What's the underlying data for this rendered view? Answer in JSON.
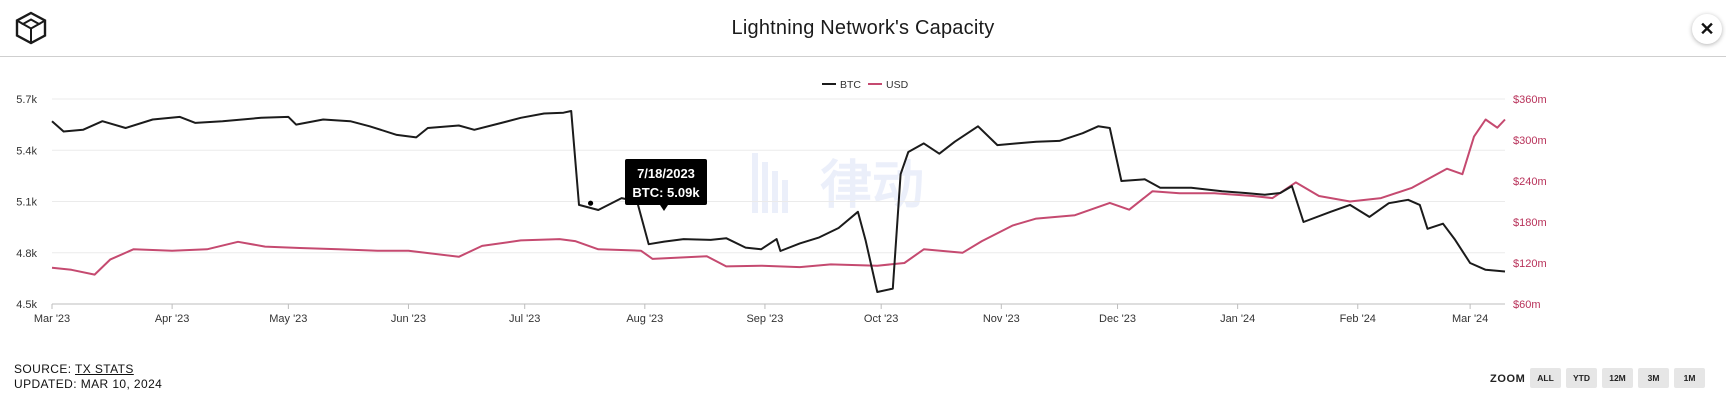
{
  "header": {
    "title": "Lightning Network's Capacity",
    "close_glyph": "✕",
    "logo_icon": "cube-logo-icon"
  },
  "footer": {
    "source_prefix": "SOURCE:",
    "source_link": "TX STATS",
    "updated": "UPDATED: MAR 10, 2024"
  },
  "zoom": {
    "label": "ZOOM",
    "buttons": [
      "ALL",
      "YTD",
      "12M",
      "3M",
      "1M"
    ]
  },
  "tooltip": {
    "date": "7/18/2023",
    "value": "BTC: 5.09k"
  },
  "watermark": "律动",
  "colors": {
    "btc": "#1b1b1b",
    "usd": "#c54a70",
    "axis_right": "#b8325a"
  },
  "chart_data": {
    "type": "line",
    "title": "Lightning Network's Capacity",
    "x_labels": [
      "Mar '23",
      "Apr '23",
      "May '23",
      "Jun '23",
      "Jul '23",
      "Aug '23",
      "Sep '23",
      "Oct '23",
      "Nov '23",
      "Dec '23",
      "Jan '24",
      "Feb '24",
      "Mar '24"
    ],
    "x_range": [
      "2023-03-01",
      "2024-03-10"
    ],
    "y_left": {
      "ticks": [
        "4.5k",
        "4.8k",
        "5.1k",
        "5.4k",
        "5.7k"
      ],
      "min": 4500,
      "max": 5700,
      "unit": "BTC"
    },
    "y_right": {
      "ticks": [
        "$60m",
        "$120m",
        "$180m",
        "$240m",
        "$300m",
        "$360m"
      ],
      "min": 60,
      "max": 360,
      "unit": "USD millions"
    },
    "legend": {
      "position": "top-center",
      "entries": [
        "BTC",
        "USD"
      ]
    },
    "series": [
      {
        "name": "BTC",
        "axis": "left",
        "points": [
          [
            "2023-03-01",
            5570
          ],
          [
            "2023-03-04",
            5510
          ],
          [
            "2023-03-09",
            5520
          ],
          [
            "2023-03-14",
            5570
          ],
          [
            "2023-03-20",
            5530
          ],
          [
            "2023-03-27",
            5580
          ],
          [
            "2023-04-03",
            5595
          ],
          [
            "2023-04-07",
            5560
          ],
          [
            "2023-04-14",
            5570
          ],
          [
            "2023-04-24",
            5590
          ],
          [
            "2023-05-01",
            5595
          ],
          [
            "2023-05-03",
            5550
          ],
          [
            "2023-05-10",
            5580
          ],
          [
            "2023-05-17",
            5570
          ],
          [
            "2023-05-22",
            5540
          ],
          [
            "2023-05-29",
            5490
          ],
          [
            "2023-06-03",
            5475
          ],
          [
            "2023-06-06",
            5530
          ],
          [
            "2023-06-14",
            5545
          ],
          [
            "2023-06-18",
            5520
          ],
          [
            "2023-06-25",
            5560
          ],
          [
            "2023-06-30",
            5590
          ],
          [
            "2023-07-06",
            5615
          ],
          [
            "2023-07-11",
            5620
          ],
          [
            "2023-07-13",
            5630
          ],
          [
            "2023-07-15",
            5080
          ],
          [
            "2023-07-20",
            5050
          ],
          [
            "2023-07-26",
            5120
          ],
          [
            "2023-07-30",
            5100
          ],
          [
            "2023-08-02",
            4850
          ],
          [
            "2023-08-06",
            4865
          ],
          [
            "2023-08-11",
            4880
          ],
          [
            "2023-08-18",
            4875
          ],
          [
            "2023-08-22",
            4885
          ],
          [
            "2023-08-27",
            4830
          ],
          [
            "2023-08-31",
            4820
          ],
          [
            "2023-09-04",
            4880
          ],
          [
            "2023-09-05",
            4810
          ],
          [
            "2023-09-10",
            4855
          ],
          [
            "2023-09-15",
            4890
          ],
          [
            "2023-09-20",
            4945
          ],
          [
            "2023-09-25",
            5040
          ],
          [
            "2023-09-27",
            4870
          ],
          [
            "2023-09-30",
            4570
          ],
          [
            "2023-10-04",
            4590
          ],
          [
            "2023-10-06",
            5260
          ],
          [
            "2023-10-08",
            5390
          ],
          [
            "2023-10-12",
            5440
          ],
          [
            "2023-10-16",
            5380
          ],
          [
            "2023-10-20",
            5450
          ],
          [
            "2023-10-26",
            5540
          ],
          [
            "2023-10-31",
            5430
          ],
          [
            "2023-11-05",
            5440
          ],
          [
            "2023-11-10",
            5450
          ],
          [
            "2023-11-16",
            5455
          ],
          [
            "2023-11-22",
            5500
          ],
          [
            "2023-11-26",
            5540
          ],
          [
            "2023-11-29",
            5530
          ],
          [
            "2023-12-02",
            5220
          ],
          [
            "2023-12-08",
            5230
          ],
          [
            "2023-12-12",
            5180
          ],
          [
            "2023-12-20",
            5180
          ],
          [
            "2023-12-28",
            5160
          ],
          [
            "2024-01-03",
            5150
          ],
          [
            "2024-01-08",
            5140
          ],
          [
            "2024-01-12",
            5150
          ],
          [
            "2024-01-15",
            5190
          ],
          [
            "2024-01-18",
            4980
          ],
          [
            "2024-01-25",
            5040
          ],
          [
            "2024-01-30",
            5080
          ],
          [
            "2024-02-04",
            5010
          ],
          [
            "2024-02-09",
            5090
          ],
          [
            "2024-02-14",
            5110
          ],
          [
            "2024-02-17",
            5080
          ],
          [
            "2024-02-19",
            4940
          ],
          [
            "2024-02-23",
            4970
          ],
          [
            "2024-02-26",
            4880
          ],
          [
            "2024-03-01",
            4740
          ],
          [
            "2024-03-05",
            4700
          ],
          [
            "2024-03-10",
            4690
          ]
        ]
      },
      {
        "name": "USD",
        "axis": "right",
        "points": [
          [
            "2023-03-01",
            113
          ],
          [
            "2023-03-06",
            110
          ],
          [
            "2023-03-12",
            103
          ],
          [
            "2023-03-16",
            125
          ],
          [
            "2023-03-22",
            140
          ],
          [
            "2023-04-01",
            138
          ],
          [
            "2023-04-10",
            140
          ],
          [
            "2023-04-18",
            151
          ],
          [
            "2023-04-25",
            144
          ],
          [
            "2023-05-04",
            142
          ],
          [
            "2023-05-14",
            140
          ],
          [
            "2023-05-24",
            138
          ],
          [
            "2023-06-01",
            138
          ],
          [
            "2023-06-14",
            129
          ],
          [
            "2023-06-20",
            145
          ],
          [
            "2023-06-30",
            153
          ],
          [
            "2023-07-10",
            155
          ],
          [
            "2023-07-14",
            152
          ],
          [
            "2023-07-20",
            140
          ],
          [
            "2023-07-31",
            138
          ],
          [
            "2023-08-03",
            126
          ],
          [
            "2023-08-17",
            130
          ],
          [
            "2023-08-22",
            115
          ],
          [
            "2023-08-31",
            116
          ],
          [
            "2023-09-10",
            114
          ],
          [
            "2023-09-18",
            118
          ],
          [
            "2023-09-30",
            116
          ],
          [
            "2023-10-07",
            120
          ],
          [
            "2023-10-12",
            140
          ],
          [
            "2023-10-22",
            135
          ],
          [
            "2023-10-27",
            152
          ],
          [
            "2023-11-04",
            175
          ],
          [
            "2023-11-10",
            185
          ],
          [
            "2023-11-20",
            190
          ],
          [
            "2023-11-29",
            208
          ],
          [
            "2023-12-04",
            198
          ],
          [
            "2023-12-10",
            225
          ],
          [
            "2023-12-17",
            222
          ],
          [
            "2023-12-26",
            222
          ],
          [
            "2024-01-05",
            218
          ],
          [
            "2024-01-10",
            215
          ],
          [
            "2024-01-16",
            238
          ],
          [
            "2024-01-22",
            218
          ],
          [
            "2024-01-30",
            210
          ],
          [
            "2024-02-07",
            215
          ],
          [
            "2024-02-15",
            230
          ],
          [
            "2024-02-24",
            258
          ],
          [
            "2024-02-28",
            250
          ],
          [
            "2024-03-02",
            305
          ],
          [
            "2024-03-05",
            330
          ],
          [
            "2024-03-08",
            318
          ],
          [
            "2024-03-10",
            330
          ]
        ]
      }
    ]
  }
}
